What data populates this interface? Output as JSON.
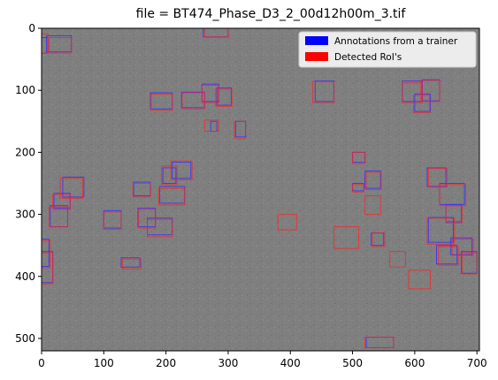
{
  "chart_data": {
    "type": "image-with-annotations",
    "title": "file = BT474_Phase_D3_2_00d12h00m_3.tif",
    "xlabel": "",
    "ylabel": "",
    "xlim": [
      0,
      704
    ],
    "ylim": [
      520,
      0
    ],
    "x_ticks": [
      0,
      100,
      200,
      300,
      400,
      500,
      600,
      700
    ],
    "y_ticks": [
      0,
      100,
      200,
      300,
      400,
      500
    ],
    "image_background": "#7f7f7f",
    "legend": {
      "position": "upper right",
      "entries": [
        {
          "label": "Annotations from a trainer",
          "color": "#0000ff"
        },
        {
          "label": "Detected RoI's",
          "color": "#ff0000"
        }
      ]
    },
    "series": [
      {
        "name": "Annotations from a trainer",
        "color": "#3333ff",
        "boxes": [
          [
            0,
            15,
            10,
            40
          ],
          [
            8,
            12,
            48,
            38
          ],
          [
            260,
            0,
            300,
            14
          ],
          [
            128,
            370,
            158,
            385
          ],
          [
            258,
            90,
            285,
            118
          ],
          [
            282,
            96,
            305,
            124
          ],
          [
            225,
            103,
            262,
            128
          ],
          [
            175,
            104,
            210,
            130
          ],
          [
            312,
            150,
            328,
            175
          ],
          [
            272,
            150,
            282,
            166
          ],
          [
            210,
            216,
            240,
            242
          ],
          [
            195,
            225,
            216,
            250
          ],
          [
            148,
            248,
            175,
            270
          ],
          [
            190,
            255,
            230,
            282
          ],
          [
            155,
            290,
            183,
            320
          ],
          [
            170,
            306,
            210,
            333
          ],
          [
            100,
            294,
            128,
            322
          ],
          [
            34,
            240,
            68,
            272
          ],
          [
            20,
            266,
            46,
            290
          ],
          [
            14,
            286,
            42,
            320
          ],
          [
            0,
            340,
            12,
            384
          ],
          [
            0,
            360,
            18,
            410
          ],
          [
            500,
            250,
            518,
            262
          ],
          [
            500,
            200,
            520,
            216
          ],
          [
            520,
            230,
            545,
            258
          ],
          [
            600,
            106,
            625,
            134
          ],
          [
            440,
            85,
            470,
            118
          ],
          [
            580,
            85,
            612,
            118
          ],
          [
            612,
            83,
            640,
            117
          ],
          [
            620,
            225,
            650,
            255
          ],
          [
            640,
            250,
            680,
            284
          ],
          [
            622,
            305,
            662,
            345
          ],
          [
            635,
            350,
            668,
            380
          ],
          [
            650,
            284,
            675,
            312
          ],
          [
            522,
            498,
            566,
            515
          ],
          [
            658,
            338,
            692,
            365
          ],
          [
            675,
            360,
            700,
            395
          ],
          [
            530,
            330,
            550,
            350
          ]
        ]
      },
      {
        "name": "Detected RoI's",
        "color": "#ff2222",
        "boxes": [
          [
            12,
            15,
            48,
            40
          ],
          [
            0,
            9,
            10,
            40
          ],
          [
            262,
            0,
            300,
            14
          ],
          [
            130,
            372,
            160,
            388
          ],
          [
            258,
            92,
            285,
            120
          ],
          [
            280,
            98,
            306,
            126
          ],
          [
            226,
            104,
            262,
            130
          ],
          [
            176,
            106,
            210,
            132
          ],
          [
            310,
            150,
            328,
            178
          ],
          [
            262,
            148,
            285,
            166
          ],
          [
            208,
            214,
            242,
            244
          ],
          [
            193,
            222,
            218,
            252
          ],
          [
            147,
            250,
            175,
            272
          ],
          [
            188,
            258,
            230,
            285
          ],
          [
            156,
            292,
            183,
            322
          ],
          [
            170,
            308,
            210,
            336
          ],
          [
            100,
            296,
            128,
            324
          ],
          [
            30,
            242,
            66,
            274
          ],
          [
            18,
            268,
            46,
            292
          ],
          [
            12,
            288,
            42,
            320
          ],
          [
            0,
            342,
            14,
            386
          ],
          [
            0,
            362,
            18,
            412
          ],
          [
            500,
            252,
            518,
            264
          ],
          [
            500,
            200,
            520,
            218
          ],
          [
            522,
            232,
            546,
            260
          ],
          [
            598,
            108,
            624,
            136
          ],
          [
            436,
            86,
            470,
            120
          ],
          [
            580,
            88,
            612,
            120
          ],
          [
            610,
            84,
            640,
            118
          ],
          [
            622,
            226,
            652,
            256
          ],
          [
            640,
            252,
            682,
            286
          ],
          [
            620,
            306,
            664,
            348
          ],
          [
            638,
            352,
            670,
            382
          ],
          [
            650,
            286,
            676,
            314
          ],
          [
            520,
            498,
            566,
            515
          ],
          [
            660,
            340,
            694,
            366
          ],
          [
            676,
            362,
            700,
            396
          ],
          [
            532,
            330,
            552,
            352
          ],
          [
            380,
            300,
            410,
            325
          ],
          [
            470,
            320,
            510,
            355
          ],
          [
            520,
            270,
            545,
            300
          ],
          [
            590,
            390,
            625,
            420
          ],
          [
            560,
            360,
            585,
            385
          ]
        ]
      }
    ]
  }
}
